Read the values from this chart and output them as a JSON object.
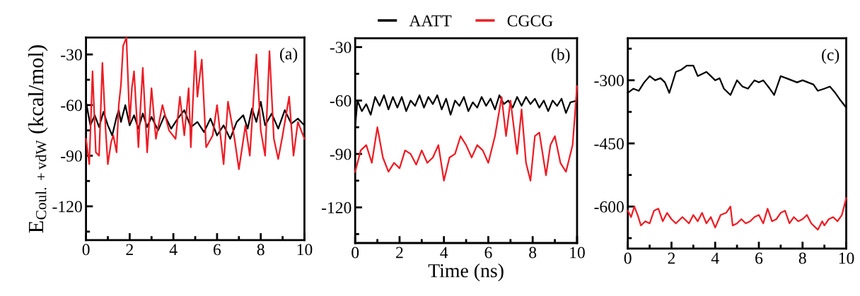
{
  "chart_data": [
    {
      "type": "line",
      "ylabel": "E$_{Coul.+vdW}$ (kcal/mol)",
      "annotations": [
        "(a)"
      ],
      "xlim": [
        0,
        10
      ],
      "ylim": [
        -140,
        -20
      ],
      "xticks": [
        0,
        {
          "value": 1,
          "label": null
        },
        2,
        {
          "value": 3,
          "label": null
        },
        4,
        {
          "value": 5,
          "label": null
        },
        6,
        {
          "value": 7,
          "label": null
        },
        8,
        {
          "value": 9,
          "label": null
        },
        10
      ],
      "yticks": [
        {
          "value": -135,
          "label": null
        },
        -120,
        {
          "value": -105,
          "label": null
        },
        -90,
        {
          "value": -75,
          "label": null
        },
        -60,
        {
          "value": -45,
          "label": null
        },
        -30
      ],
      "series": [
        {
          "color": "#000000",
          "x": [
            0,
            0.1,
            0.2,
            0.4,
            0.6,
            0.8,
            1.0,
            1.2,
            1.4,
            1.5,
            1.6,
            1.8,
            2.0,
            2.2,
            2.4,
            2.6,
            2.8,
            3.0,
            3.3,
            3.6,
            3.9,
            4.2,
            4.5,
            4.8,
            5.1,
            5.4,
            5.7,
            6.0,
            6.3,
            6.6,
            6.9,
            7.2,
            7.4,
            7.6,
            7.8,
            8.0,
            8.2,
            8.5,
            8.8,
            9.1,
            9.4,
            9.7,
            10
          ],
          "values": [
            -58,
            -65,
            -72,
            -66,
            -73,
            -64,
            -72,
            -78,
            -67,
            -63,
            -70,
            -60,
            -72,
            -66,
            -74,
            -65,
            -73,
            -67,
            -75,
            -66,
            -74,
            -68,
            -63,
            -73,
            -70,
            -76,
            -68,
            -78,
            -72,
            -80,
            -70,
            -66,
            -74,
            -62,
            -70,
            -58,
            -72,
            -65,
            -74,
            -63,
            -71,
            -68,
            -72
          ]
        },
        {
          "color": "#ed1c24",
          "x": [
            0,
            0.15,
            0.3,
            0.45,
            0.6,
            0.75,
            0.9,
            1.0,
            1.15,
            1.25,
            1.4,
            1.5,
            1.6,
            1.7,
            1.85,
            2.0,
            2.1,
            2.2,
            2.4,
            2.5,
            2.6,
            2.8,
            3.0,
            3.2,
            3.5,
            3.8,
            4.1,
            4.3,
            4.5,
            4.7,
            4.8,
            5.0,
            5.1,
            5.3,
            5.5,
            5.8,
            6.0,
            6.3,
            6.5,
            6.8,
            7.0,
            7.3,
            7.5,
            7.7,
            7.8,
            8.0,
            8.2,
            8.4,
            8.6,
            8.8,
            9.0,
            9.3,
            9.5,
            9.7,
            10
          ],
          "values": [
            -80,
            -95,
            -40,
            -88,
            -90,
            -35,
            -75,
            -95,
            -82,
            -78,
            -88,
            -60,
            -48,
            -25,
            -20,
            -70,
            -50,
            -40,
            -85,
            -60,
            -38,
            -88,
            -50,
            -80,
            -60,
            -75,
            -80,
            -55,
            -78,
            -50,
            -85,
            -28,
            -55,
            -33,
            -85,
            -78,
            -60,
            -95,
            -58,
            -80,
            -98,
            -72,
            -90,
            -50,
            -30,
            -75,
            -90,
            -28,
            -80,
            -92,
            -78,
            -55,
            -90,
            -70,
            -80
          ]
        }
      ]
    },
    {
      "type": "line",
      "xlabel": "Time (ns)",
      "annotations": [
        "(b)"
      ],
      "legend": "top",
      "xlim": [
        0,
        10
      ],
      "ylim": [
        -140,
        -25
      ],
      "xticks": [
        0,
        {
          "value": 1,
          "label": null
        },
        2,
        {
          "value": 3,
          "label": null
        },
        4,
        {
          "value": 5,
          "label": null
        },
        6,
        {
          "value": 7,
          "label": null
        },
        8,
        {
          "value": 9,
          "label": null
        },
        10
      ],
      "yticks": [
        {
          "value": -135,
          "label": null
        },
        -120,
        {
          "value": -105,
          "label": null
        },
        -90,
        {
          "value": -75,
          "label": null
        },
        -60,
        {
          "value": -45,
          "label": null
        },
        -30
      ],
      "series": [
        {
          "name": "AATT",
          "color": "#000000",
          "x": [
            0,
            0.1,
            0.3,
            0.5,
            0.7,
            0.9,
            1.1,
            1.3,
            1.5,
            1.7,
            1.9,
            2.1,
            2.3,
            2.5,
            2.7,
            2.9,
            3.1,
            3.3,
            3.5,
            3.7,
            3.9,
            4.1,
            4.3,
            4.5,
            4.7,
            4.9,
            5.1,
            5.3,
            5.5,
            5.7,
            5.9,
            6.1,
            6.3,
            6.5,
            6.7,
            6.9,
            7.1,
            7.3,
            7.5,
            7.7,
            7.9,
            8.1,
            8.3,
            8.5,
            8.7,
            8.9,
            9.1,
            9.3,
            9.5,
            9.7,
            10
          ],
          "values": [
            -75,
            -60,
            -66,
            -62,
            -68,
            -58,
            -63,
            -57,
            -65,
            -58,
            -64,
            -58,
            -66,
            -60,
            -63,
            -57,
            -64,
            -58,
            -62,
            -57,
            -65,
            -59,
            -68,
            -60,
            -63,
            -58,
            -66,
            -61,
            -64,
            -58,
            -63,
            -59,
            -65,
            -57,
            -62,
            -60,
            -64,
            -58,
            -63,
            -58,
            -62,
            -59,
            -64,
            -60,
            -66,
            -60,
            -63,
            -59,
            -67,
            -61,
            -60
          ]
        },
        {
          "name": "CGCG",
          "color": "#ed1c24",
          "x": [
            0,
            0.25,
            0.5,
            0.75,
            1.0,
            1.25,
            1.5,
            1.75,
            2.0,
            2.25,
            2.5,
            2.75,
            3.0,
            3.25,
            3.5,
            3.75,
            4.0,
            4.25,
            4.5,
            4.75,
            5.0,
            5.25,
            5.5,
            5.75,
            6.0,
            6.3,
            6.6,
            6.8,
            7.0,
            7.3,
            7.5,
            7.7,
            7.9,
            8.1,
            8.3,
            8.6,
            8.8,
            9.0,
            9.25,
            9.5,
            9.8,
            10
          ],
          "values": [
            -100,
            -88,
            -85,
            -95,
            -75,
            -92,
            -100,
            -95,
            -98,
            -88,
            -90,
            -96,
            -88,
            -95,
            -92,
            -85,
            -105,
            -92,
            -90,
            -80,
            -85,
            -92,
            -85,
            -88,
            -95,
            -80,
            -58,
            -80,
            -60,
            -90,
            -65,
            -95,
            -105,
            -80,
            -78,
            -102,
            -85,
            -80,
            -95,
            -100,
            -85,
            -52
          ]
        }
      ]
    },
    {
      "type": "line",
      "annotations": [
        "(c)"
      ],
      "xlim": [
        0,
        10
      ],
      "ylim": [
        -700,
        -200
      ],
      "xticks": [
        0,
        {
          "value": 1,
          "label": null
        },
        2,
        {
          "value": 3,
          "label": null
        },
        4,
        {
          "value": 5,
          "label": null
        },
        6,
        {
          "value": 7,
          "label": null
        },
        8,
        {
          "value": 9,
          "label": null
        },
        10
      ],
      "yticks": [
        {
          "value": -675,
          "label": null
        },
        -600,
        {
          "value": -525,
          "label": null
        },
        -450,
        {
          "value": -375,
          "label": null
        },
        -300,
        {
          "value": -225,
          "label": null
        }
      ],
      "series": [
        {
          "color": "#000000",
          "x": [
            0,
            0.25,
            0.5,
            0.75,
            1.0,
            1.25,
            1.5,
            1.7,
            1.9,
            2.2,
            2.45,
            2.7,
            3.0,
            3.2,
            3.4,
            3.6,
            3.8,
            4.0,
            4.2,
            4.4,
            4.7,
            5.0,
            5.25,
            5.5,
            5.8,
            6.0,
            6.2,
            6.5,
            6.7,
            7.0,
            7.25,
            7.5,
            7.75,
            8.0,
            8.25,
            8.5,
            8.7,
            9.0,
            9.25,
            9.5,
            9.7,
            10
          ],
          "values": [
            -330,
            -320,
            -325,
            -305,
            -290,
            -300,
            -295,
            -305,
            -330,
            -280,
            -275,
            -265,
            -265,
            -290,
            -285,
            -280,
            -290,
            -300,
            -295,
            -320,
            -335,
            -300,
            -315,
            -320,
            -300,
            -305,
            -300,
            -320,
            -335,
            -290,
            -295,
            -300,
            -305,
            -300,
            -305,
            -310,
            -325,
            -320,
            -315,
            -330,
            -345,
            -365
          ]
        },
        {
          "color": "#ed1c24",
          "x": [
            0,
            0.15,
            0.3,
            0.45,
            0.6,
            0.8,
            1.0,
            1.2,
            1.4,
            1.6,
            1.8,
            2.0,
            2.2,
            2.5,
            2.8,
            3.0,
            3.2,
            3.4,
            3.6,
            3.8,
            4.0,
            4.25,
            4.5,
            4.7,
            4.8,
            5.0,
            5.2,
            5.4,
            5.6,
            5.8,
            6.0,
            6.2,
            6.4,
            6.6,
            6.8,
            7.0,
            7.2,
            7.4,
            7.6,
            7.8,
            8.0,
            8.2,
            8.4,
            8.7,
            8.9,
            9.0,
            9.2,
            9.4,
            9.6,
            9.8,
            10
          ],
          "values": [
            -610,
            -625,
            -600,
            -620,
            -645,
            -635,
            -640,
            -610,
            -605,
            -635,
            -615,
            -630,
            -640,
            -625,
            -640,
            -620,
            -635,
            -615,
            -640,
            -625,
            -650,
            -620,
            -615,
            -600,
            -645,
            -640,
            -630,
            -640,
            -635,
            -625,
            -620,
            -640,
            -605,
            -635,
            -630,
            -615,
            -610,
            -640,
            -625,
            -635,
            -630,
            -620,
            -640,
            -655,
            -635,
            -645,
            -630,
            -625,
            -635,
            -620,
            -580
          ]
        }
      ]
    }
  ]
}
